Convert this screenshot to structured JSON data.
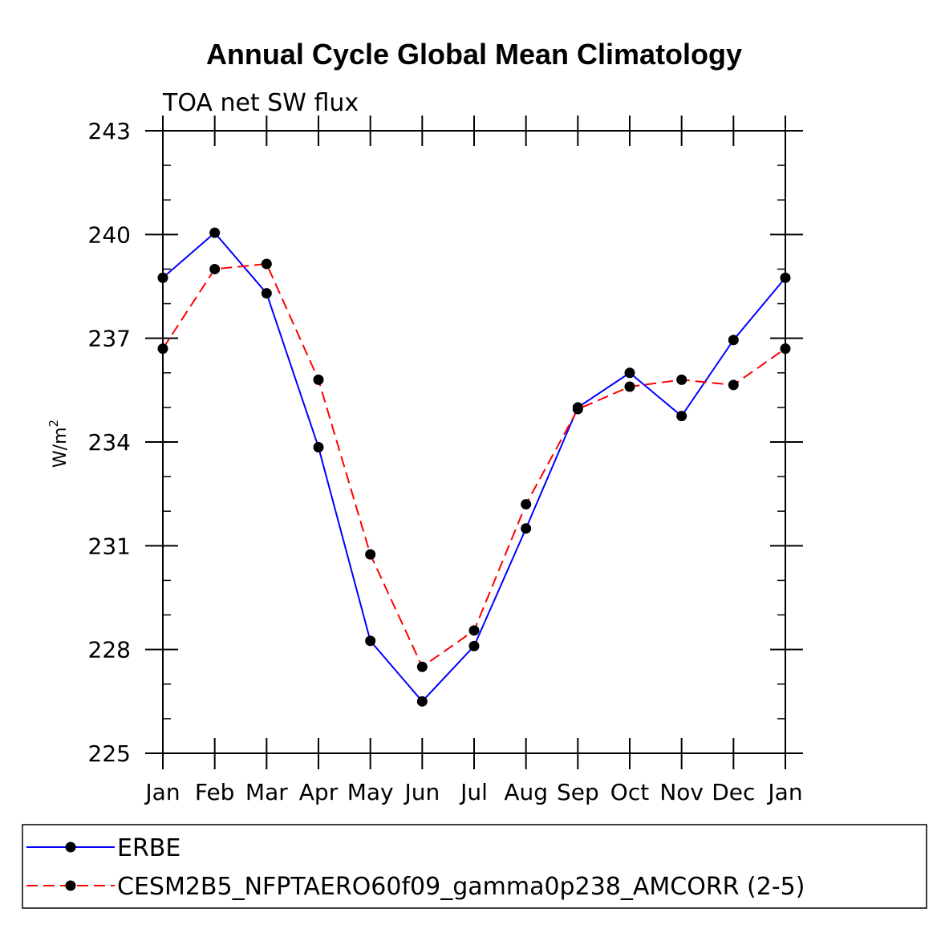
{
  "chart_data": {
    "type": "line",
    "title": "Annual Cycle Global Mean Climatology",
    "subtitle": "TOA net SW flux",
    "ylabel": "W/m",
    "ylabel_superscript": "2",
    "xlabel": "",
    "categories": [
      "Jan",
      "Feb",
      "Mar",
      "Apr",
      "May",
      "Jun",
      "Jul",
      "Aug",
      "Sep",
      "Oct",
      "Nov",
      "Dec",
      "Jan"
    ],
    "ylim": [
      225,
      243
    ],
    "yticks": [
      225,
      228,
      231,
      234,
      237,
      240,
      243
    ],
    "series": [
      {
        "name": "ERBE",
        "color": "#0000ff",
        "style": "solid",
        "values": [
          238.75,
          240.05,
          238.3,
          233.85,
          228.25,
          226.5,
          228.1,
          231.5,
          235.0,
          236.0,
          234.75,
          236.95,
          238.75
        ]
      },
      {
        "name": "CESM2B5_NFPTAERO60f09_gamma0p238_AMCORR (2-5)",
        "color": "#ff0000",
        "style": "dashed",
        "values": [
          236.7,
          239.0,
          239.15,
          235.8,
          230.75,
          227.5,
          228.55,
          232.2,
          234.95,
          235.6,
          235.8,
          235.65,
          236.7
        ]
      }
    ],
    "legend_position": "bottom"
  }
}
